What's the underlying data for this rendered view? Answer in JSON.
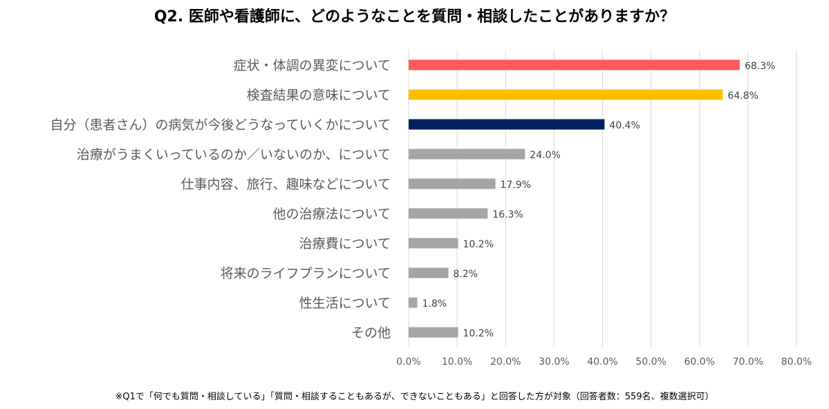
{
  "chart_data": {
    "type": "bar",
    "orientation": "horizontal",
    "title": "Q2. 医師や看護師に、どのようなことを質問・相談したことがありますか？",
    "categories": [
      "症状・体調の異変について",
      "検査結果の意味について",
      "自分（患者さん）の病気が今後どうなっていくかについて",
      "治療がうまくいっているのか／いないのか、について",
      "仕事内容、旅行、趣味などについて",
      "他の治療法について",
      "治療費について",
      "将来のライフプランについて",
      "性生活について",
      "その他"
    ],
    "values": [
      68.3,
      64.8,
      40.4,
      24.0,
      17.9,
      16.3,
      10.2,
      8.2,
      1.8,
      10.2
    ],
    "data_labels": [
      "68.3%",
      "64.8%",
      "40.4%",
      "24.0%",
      "17.9%",
      "16.3%",
      "10.2%",
      "8.2%",
      "1.8%",
      "10.2%"
    ],
    "colors": [
      "#FF585D",
      "#FFC000",
      "#002060",
      "#A5A5A5",
      "#A5A5A5",
      "#A5A5A5",
      "#A5A5A5",
      "#A5A5A5",
      "#A5A5A5",
      "#A5A5A5"
    ],
    "xlim": [
      0,
      80
    ],
    "x_ticks": [
      "0.0%",
      "10.0%",
      "20.0%",
      "30.0%",
      "40.0%",
      "50.0%",
      "60.0%",
      "70.0%",
      "80.0%"
    ],
    "grid": "vertical",
    "footnote": "※Q1で「何でも質問・相談している」「質問・相談することもあるが、できないこともある」と回答した方が対象（回答者数：559名、複数選択可）"
  }
}
